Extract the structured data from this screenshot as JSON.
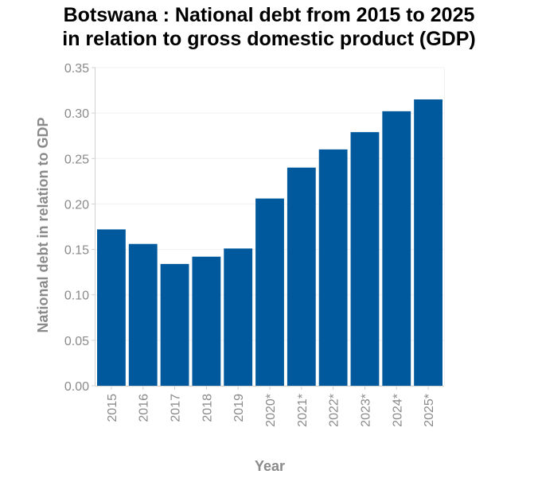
{
  "chart_data": {
    "type": "bar",
    "title": "Botswana : National debt from 2015 to 2025 in relation to gross domestic product (GDP)",
    "title_lines": [
      "Botswana : National debt from 2015 to 2025",
      "in relation to gross domestic product (GDP)"
    ],
    "xlabel": "Year",
    "ylabel": "National debt in relation to GDP",
    "categories": [
      "2015",
      "2016",
      "2017",
      "2018",
      "2019",
      "2020*",
      "2021*",
      "2022*",
      "2023*",
      "2024*",
      "2025*"
    ],
    "values": [
      0.172,
      0.156,
      0.134,
      0.142,
      0.151,
      0.206,
      0.24,
      0.26,
      0.279,
      0.302,
      0.315
    ],
    "ylim": [
      0,
      0.35
    ],
    "yticks": [
      "0.00",
      "0.05",
      "0.10",
      "0.15",
      "0.20",
      "0.25",
      "0.30",
      "0.35"
    ],
    "grid": true,
    "colors": {
      "bar": "#00599c",
      "axis_text": "#8a8a8a",
      "title": "#000000",
      "grid": "#f0f0f0",
      "axis_line": "#d0d0d0"
    }
  }
}
